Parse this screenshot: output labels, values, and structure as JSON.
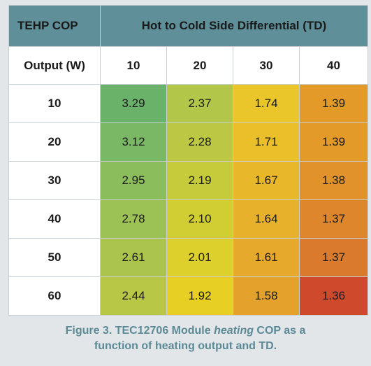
{
  "table": {
    "corner_label": "TEHP COP",
    "span_header": "Hot to Cold Side Differential (TD)",
    "row_header_label": "Output (W)",
    "columns": [
      "10",
      "20",
      "30",
      "40"
    ],
    "rows": [
      {
        "output": "10",
        "values": [
          "3.29",
          "2.37",
          "1.74",
          "1.39"
        ],
        "colors": [
          "#6ab26a",
          "#b2c64a",
          "#ebc62a",
          "#e39a28"
        ]
      },
      {
        "output": "20",
        "values": [
          "3.12",
          "2.28",
          "1.71",
          "1.39"
        ],
        "colors": [
          "#7ab866",
          "#bcc844",
          "#ebbf2a",
          "#e39a28"
        ]
      },
      {
        "output": "30",
        "values": [
          "2.95",
          "2.19",
          "1.67",
          "1.38"
        ],
        "colors": [
          "#8cbd5c",
          "#c6cb3c",
          "#e9b82a",
          "#e1922a"
        ]
      },
      {
        "output": "40",
        "values": [
          "2.78",
          "2.10",
          "1.64",
          "1.37"
        ],
        "colors": [
          "#9cc155",
          "#d1ce34",
          "#e8b12b",
          "#de862b"
        ]
      },
      {
        "output": "50",
        "values": [
          "2.61",
          "2.01",
          "1.61",
          "1.37"
        ],
        "colors": [
          "#aac44d",
          "#ddd02c",
          "#e6a92b",
          "#da7a2c"
        ]
      },
      {
        "output": "60",
        "values": [
          "2.44",
          "1.92",
          "1.58",
          "1.36"
        ],
        "colors": [
          "#b9c746",
          "#e7cf24",
          "#e4a12b",
          "#cf4a2c"
        ]
      }
    ]
  },
  "caption": {
    "line1_prefix": "Figure 3. TEC12706 Module ",
    "line1_em": "heating",
    "line1_suffix": " COP as a",
    "line2": "function of heating output and TD."
  }
}
